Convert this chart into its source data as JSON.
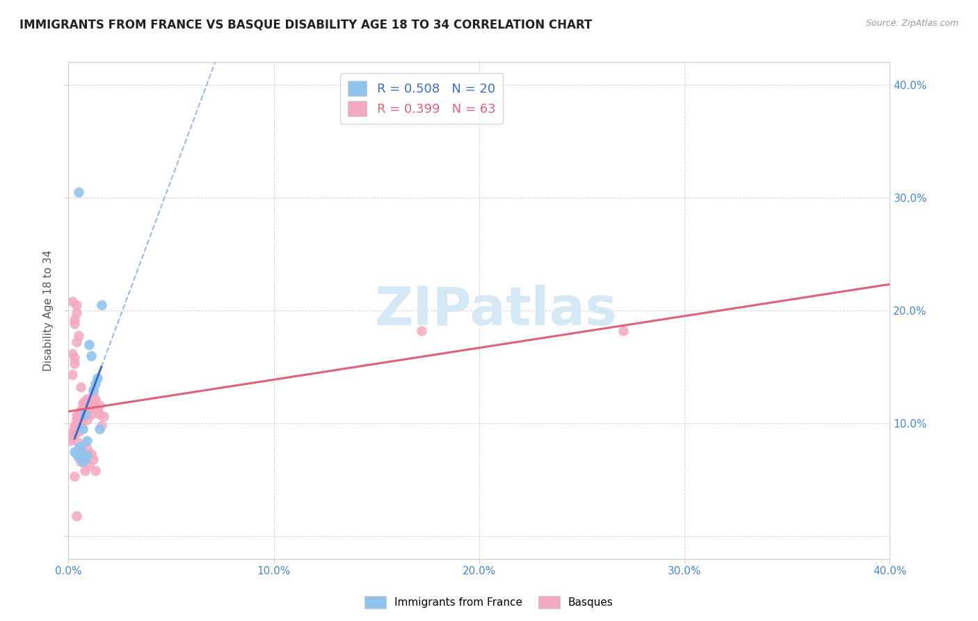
{
  "title": "IMMIGRANTS FROM FRANCE VS BASQUE DISABILITY AGE 18 TO 34 CORRELATION CHART",
  "source": "Source: ZipAtlas.com",
  "ylabel": "Disability Age 18 to 34",
  "xlim": [
    0.0,
    0.4
  ],
  "ylim": [
    -0.02,
    0.42
  ],
  "xticks": [
    0.0,
    0.1,
    0.2,
    0.3,
    0.4
  ],
  "yticks": [
    0.0,
    0.1,
    0.2,
    0.3,
    0.4
  ],
  "xtick_labels": [
    "0.0%",
    "10.0%",
    "20.0%",
    "30.0%",
    "40.0%"
  ],
  "ytick_labels_right": [
    "",
    "10.0%",
    "20.0%",
    "30.0%",
    "40.0%"
  ],
  "legend_label1": "Immigrants from France",
  "legend_label2": "Basques",
  "R1": 0.508,
  "N1": 20,
  "R2": 0.399,
  "N2": 63,
  "color_blue": "#91C4ED",
  "color_pink": "#F4A8C0",
  "line_color_blue": "#3B6CC7",
  "line_color_pink": "#E0607A",
  "dashed_line_color": "#A0B8D8",
  "watermark_color": "#D5E8F5",
  "background_color": "#FFFFFF",
  "blue_points_x": [
    0.003,
    0.005,
    0.006,
    0.007,
    0.008,
    0.009,
    0.01,
    0.011,
    0.012,
    0.013,
    0.014,
    0.015,
    0.016,
    0.004,
    0.005,
    0.007,
    0.008,
    0.009,
    0.006,
    0.005
  ],
  "blue_points_y": [
    0.075,
    0.078,
    0.08,
    0.095,
    0.108,
    0.085,
    0.17,
    0.16,
    0.13,
    0.135,
    0.14,
    0.095,
    0.205,
    0.073,
    0.07,
    0.066,
    0.068,
    0.072,
    0.074,
    0.305
  ],
  "pink_points_x": [
    0.001,
    0.002,
    0.002,
    0.003,
    0.003,
    0.003,
    0.004,
    0.004,
    0.004,
    0.005,
    0.005,
    0.005,
    0.006,
    0.006,
    0.006,
    0.007,
    0.007,
    0.007,
    0.008,
    0.008,
    0.008,
    0.009,
    0.009,
    0.009,
    0.01,
    0.01,
    0.011,
    0.011,
    0.012,
    0.012,
    0.013,
    0.014,
    0.015,
    0.016,
    0.017,
    0.002,
    0.003,
    0.003,
    0.004,
    0.004,
    0.005,
    0.006,
    0.007,
    0.008,
    0.009,
    0.01,
    0.011,
    0.012,
    0.013,
    0.003,
    0.004,
    0.172,
    0.27,
    0.002,
    0.002,
    0.003,
    0.003,
    0.004,
    0.005,
    0.006,
    0.007,
    0.009,
    0.015
  ],
  "pink_points_y": [
    0.085,
    0.088,
    0.092,
    0.09,
    0.095,
    0.098,
    0.098,
    0.103,
    0.107,
    0.093,
    0.1,
    0.106,
    0.098,
    0.108,
    0.112,
    0.106,
    0.112,
    0.118,
    0.11,
    0.116,
    0.12,
    0.103,
    0.118,
    0.122,
    0.112,
    0.118,
    0.108,
    0.115,
    0.118,
    0.128,
    0.122,
    0.113,
    0.116,
    0.098,
    0.106,
    0.208,
    0.188,
    0.192,
    0.198,
    0.205,
    0.083,
    0.066,
    0.07,
    0.058,
    0.078,
    0.063,
    0.073,
    0.068,
    0.058,
    0.053,
    0.018,
    0.182,
    0.182,
    0.143,
    0.162,
    0.158,
    0.153,
    0.172,
    0.178,
    0.132,
    0.103,
    0.11,
    0.108
  ]
}
